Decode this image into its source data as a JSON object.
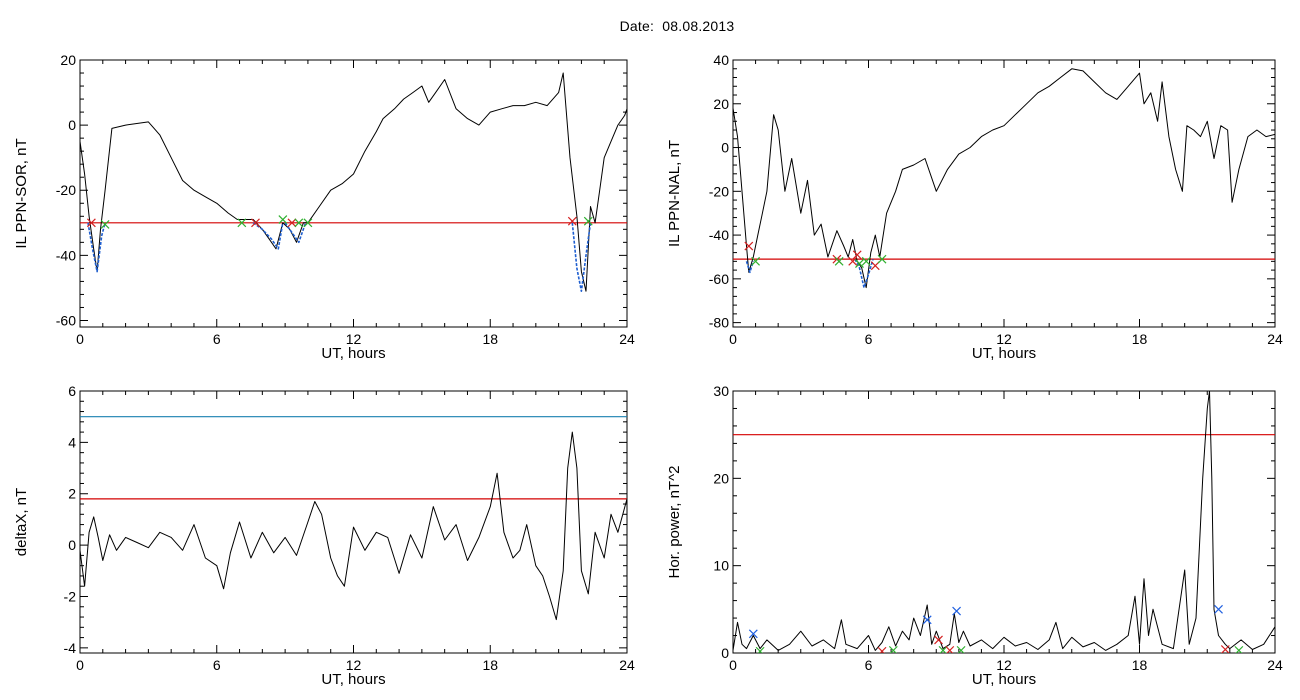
{
  "title_label": "Date:",
  "title_value": "08.08.2013",
  "colors": {
    "curve": "#000000",
    "threshold_red": "#d40000",
    "threshold_blue": "#1a80b0",
    "segment_blue": "#1f5fd0",
    "marker_red": "#d42020",
    "marker_green": "#2fb02f",
    "marker_blue": "#2060e0"
  },
  "chart_data": [
    {
      "id": "tl",
      "type": "line",
      "xlabel": "UT, hours",
      "ylabel": "IL PPN-SOR, nT",
      "xlim": [
        0,
        24
      ],
      "ylim": [
        -62,
        20
      ],
      "xticks": [
        0,
        6,
        12,
        18,
        24
      ],
      "yticks": [
        -60,
        -40,
        -20,
        0,
        20
      ],
      "threshold": {
        "y": -30,
        "color": "red"
      },
      "series": [
        {
          "x": [
            0,
            0.2,
            0.4,
            0.6,
            0.75,
            0.9,
            1.1,
            1.4,
            2,
            3,
            3.5,
            4,
            4.5,
            5,
            5.5,
            6,
            6.5,
            6.9,
            7.2,
            7.6,
            8,
            8.3,
            8.6,
            8.9,
            9.2,
            9.5,
            9.8,
            10,
            10.5,
            11,
            11.5,
            12,
            12.5,
            13,
            13.3,
            13.8,
            14.2,
            14.6,
            15,
            15.3,
            15.6,
            16,
            16.5,
            17,
            17.5,
            18,
            18.5,
            19,
            19.5,
            20,
            20.5,
            21,
            21.2,
            21.5,
            21.8,
            22,
            22.2,
            22.4,
            22.6,
            22.8,
            23,
            23.3,
            23.6,
            23.9,
            24
          ],
          "y": [
            -5,
            -15,
            -28,
            -38,
            -45,
            -32,
            -20,
            -1,
            0,
            1,
            -3,
            -10,
            -17,
            -20,
            -22,
            -24,
            -27,
            -29,
            -29,
            -29,
            -32,
            -35,
            -38,
            -30,
            -32,
            -36,
            -30,
            -30,
            -25,
            -20,
            -18,
            -15,
            -8,
            -2,
            2,
            5,
            8,
            10,
            12,
            7,
            10,
            14,
            5,
            2,
            0,
            4,
            5,
            6,
            6,
            7,
            6,
            10,
            16,
            -10,
            -28,
            -45,
            -51,
            -25,
            -30,
            -20,
            -10,
            -5,
            0,
            3,
            5
          ]
        }
      ],
      "segments": [
        {
          "x": [
            0.35,
            0.55,
            0.75,
            0.95,
            1.1
          ],
          "y": [
            -30,
            -38,
            -45,
            -34,
            -30
          ]
        },
        {
          "x": [
            7.6,
            8.0,
            8.4,
            8.7,
            8.9
          ],
          "y": [
            -30,
            -32,
            -35,
            -38,
            -30
          ]
        },
        {
          "x": [
            9.0,
            9.3,
            9.6,
            9.9
          ],
          "y": [
            -30,
            -33,
            -36,
            -30
          ]
        },
        {
          "x": [
            21.6,
            21.8,
            22.0,
            22.2,
            22.4
          ],
          "y": [
            -30,
            -44,
            -51,
            -40,
            -30
          ]
        }
      ],
      "markers": [
        {
          "x": 0.5,
          "y": -30,
          "color": "red"
        },
        {
          "x": 1.1,
          "y": -30.5,
          "color": "green"
        },
        {
          "x": 7.1,
          "y": -30,
          "color": "green"
        },
        {
          "x": 7.7,
          "y": -30,
          "color": "red"
        },
        {
          "x": 8.9,
          "y": -29,
          "color": "green"
        },
        {
          "x": 9.3,
          "y": -30,
          "color": "red"
        },
        {
          "x": 9.6,
          "y": -30,
          "color": "green"
        },
        {
          "x": 10.0,
          "y": -30,
          "color": "green"
        },
        {
          "x": 21.6,
          "y": -29.5,
          "color": "red"
        },
        {
          "x": 22.3,
          "y": -29.5,
          "color": "green"
        }
      ]
    },
    {
      "id": "tr",
      "type": "line",
      "xlabel": "UT, hours",
      "ylabel": "IL PPN-NAL, nT",
      "xlim": [
        0,
        24
      ],
      "ylim": [
        -82,
        40
      ],
      "xticks": [
        0,
        6,
        12,
        18,
        24
      ],
      "yticks": [
        -80,
        -60,
        -40,
        -20,
        0,
        20,
        40
      ],
      "threshold": {
        "y": -51,
        "color": "red"
      },
      "series": [
        {
          "x": [
            0,
            0.2,
            0.4,
            0.6,
            0.7,
            0.9,
            1.1,
            1.3,
            1.5,
            1.8,
            2.0,
            2.3,
            2.6,
            3.0,
            3.3,
            3.6,
            3.9,
            4.2,
            4.6,
            4.9,
            5.1,
            5.3,
            5.5,
            5.7,
            5.9,
            6.1,
            6.3,
            6.5,
            6.8,
            7.2,
            7.5,
            8,
            8.5,
            9,
            9.5,
            10,
            10.5,
            11,
            11.5,
            12,
            12.5,
            13,
            13.5,
            14,
            14.5,
            15,
            15.5,
            16,
            16.5,
            17,
            17.5,
            18,
            18.2,
            18.5,
            18.8,
            19,
            19.3,
            19.6,
            19.9,
            20.1,
            20.4,
            20.7,
            21.0,
            21.3,
            21.6,
            21.9,
            22.1,
            22.4,
            22.8,
            23.2,
            23.6,
            24
          ],
          "y": [
            18,
            5,
            -20,
            -45,
            -57,
            -50,
            -40,
            -30,
            -20,
            15,
            8,
            -20,
            -5,
            -30,
            -15,
            -40,
            -35,
            -50,
            -38,
            -45,
            -50,
            -42,
            -52,
            -55,
            -64,
            -48,
            -40,
            -50,
            -30,
            -20,
            -10,
            -8,
            -5,
            -20,
            -10,
            -3,
            0,
            5,
            8,
            10,
            15,
            20,
            25,
            28,
            32,
            36,
            35,
            30,
            25,
            22,
            28,
            34,
            20,
            25,
            12,
            30,
            5,
            -10,
            -20,
            10,
            8,
            5,
            12,
            -5,
            10,
            8,
            -25,
            -10,
            5,
            8,
            5,
            6
          ]
        }
      ],
      "segments": [
        {
          "x": [
            0.6,
            0.75,
            0.9
          ],
          "y": [
            -52,
            -57,
            -52
          ]
        },
        {
          "x": [
            5.4,
            5.6,
            5.8,
            6.0,
            6.2
          ],
          "y": [
            -51,
            -55,
            -64,
            -58,
            -51
          ]
        }
      ],
      "markers": [
        {
          "x": 0.7,
          "y": -45,
          "color": "red"
        },
        {
          "x": 1.0,
          "y": -52,
          "color": "green"
        },
        {
          "x": 4.6,
          "y": -51,
          "color": "red"
        },
        {
          "x": 4.7,
          "y": -52,
          "color": "green"
        },
        {
          "x": 5.3,
          "y": -52,
          "color": "red"
        },
        {
          "x": 5.5,
          "y": -49,
          "color": "red"
        },
        {
          "x": 5.6,
          "y": -53,
          "color": "green"
        },
        {
          "x": 5.9,
          "y": -52,
          "color": "green"
        },
        {
          "x": 6.3,
          "y": -54,
          "color": "red"
        },
        {
          "x": 6.6,
          "y": -51,
          "color": "green"
        }
      ]
    },
    {
      "id": "bl",
      "type": "line",
      "xlabel": "UT, hours",
      "ylabel": "deltaX, nT",
      "xlim": [
        0,
        24
      ],
      "ylim": [
        -4.2,
        6
      ],
      "xticks": [
        0,
        6,
        12,
        18,
        24
      ],
      "yticks": [
        -4,
        -2,
        0,
        2,
        4,
        6
      ],
      "threshold": {
        "y": 1.8,
        "color": "red"
      },
      "threshold2": {
        "y": 5.0,
        "color": "blue"
      },
      "series": [
        {
          "x": [
            0,
            0.2,
            0.4,
            0.6,
            0.8,
            1.0,
            1.3,
            1.6,
            2,
            2.5,
            3,
            3.5,
            4,
            4.5,
            5,
            5.5,
            6,
            6.3,
            6.6,
            7,
            7.5,
            8,
            8.5,
            9,
            9.5,
            10,
            10.3,
            10.6,
            11,
            11.3,
            11.6,
            12,
            12.5,
            13,
            13.5,
            14,
            14.5,
            15,
            15.5,
            16,
            16.5,
            17,
            17.5,
            18,
            18.3,
            18.6,
            19,
            19.3,
            19.6,
            20,
            20.3,
            20.6,
            20.9,
            21.2,
            21.4,
            21.6,
            21.8,
            22,
            22.3,
            22.6,
            23,
            23.3,
            23.6,
            24
          ],
          "y": [
            -0.2,
            -1.6,
            0.5,
            1.1,
            0.3,
            -0.6,
            0.4,
            -0.2,
            0.3,
            0.1,
            -0.1,
            0.5,
            0.3,
            -0.2,
            0.8,
            -0.5,
            -0.8,
            -1.7,
            -0.3,
            0.9,
            -0.5,
            0.5,
            -0.3,
            0.3,
            -0.4,
            0.9,
            1.7,
            1.2,
            -0.5,
            -1.2,
            -1.6,
            0.7,
            -0.2,
            0.5,
            0.3,
            -1.1,
            0.4,
            -0.5,
            1.5,
            0.2,
            0.8,
            -0.6,
            0.3,
            1.5,
            2.8,
            0.5,
            -0.5,
            -0.2,
            0.8,
            -0.8,
            -1.2,
            -2.0,
            -2.9,
            -1.0,
            3.0,
            4.4,
            3.0,
            -1.0,
            -1.9,
            0.5,
            -0.5,
            1.2,
            0.5,
            1.8
          ]
        }
      ]
    },
    {
      "id": "br",
      "type": "line",
      "xlabel": "UT, hours",
      "ylabel": "Hor. power, nT^2",
      "xlim": [
        0,
        24
      ],
      "ylim": [
        0,
        30
      ],
      "xticks": [
        0,
        6,
        12,
        18,
        24
      ],
      "yticks": [
        0,
        10,
        20,
        30
      ],
      "threshold": {
        "y": 25,
        "color": "red"
      },
      "series": [
        {
          "x": [
            0,
            0.2,
            0.4,
            0.6,
            0.9,
            1.2,
            1.5,
            2,
            2.5,
            3,
            3.5,
            4,
            4.5,
            4.8,
            5,
            5.5,
            6,
            6.3,
            6.6,
            6.9,
            7.2,
            7.5,
            7.8,
            8,
            8.3,
            8.6,
            8.8,
            9,
            9.3,
            9.6,
            9.8,
            10,
            10.2,
            10.5,
            11,
            11.5,
            12,
            12.5,
            13,
            13.5,
            14,
            14.3,
            14.6,
            15,
            15.5,
            16,
            16.5,
            17,
            17.5,
            17.8,
            18,
            18.2,
            18.4,
            18.6,
            19,
            19.5,
            20,
            20.2,
            20.5,
            20.8,
            21,
            21.1,
            21.2,
            21.3,
            21.5,
            21.8,
            22,
            22.5,
            23,
            23.5,
            24
          ],
          "y": [
            0.3,
            3.5,
            1.0,
            0.5,
            2.0,
            0.5,
            1.5,
            0.3,
            1.0,
            2.5,
            0.8,
            1.5,
            0.5,
            3.8,
            1.0,
            0.5,
            2.0,
            0.3,
            1.2,
            3.0,
            0.8,
            2.5,
            1.5,
            4.0,
            2.0,
            5.5,
            1.0,
            2.5,
            0.5,
            1.0,
            4.5,
            1.2,
            2.5,
            0.8,
            1.5,
            0.5,
            1.8,
            0.8,
            1.2,
            0.4,
            1.5,
            3.5,
            0.5,
            1.8,
            0.7,
            1.2,
            0.3,
            1.0,
            2.0,
            6.5,
            1.0,
            8.5,
            2.0,
            5.0,
            1.0,
            0.5,
            9.5,
            1.0,
            4.0,
            20.0,
            28.0,
            30.0,
            20.0,
            5.0,
            2.0,
            1.0,
            0.5,
            1.5,
            0.4,
            1.0,
            3.0
          ]
        }
      ],
      "markers": [
        {
          "x": 0.9,
          "y": 2.2,
          "color": "blue"
        },
        {
          "x": 1.2,
          "y": 0.2,
          "color": "green"
        },
        {
          "x": 6.6,
          "y": 0.2,
          "color": "red"
        },
        {
          "x": 7.1,
          "y": 0.3,
          "color": "green"
        },
        {
          "x": 8.6,
          "y": 3.8,
          "color": "blue"
        },
        {
          "x": 9.1,
          "y": 1.5,
          "color": "red"
        },
        {
          "x": 9.3,
          "y": 0.3,
          "color": "green"
        },
        {
          "x": 9.6,
          "y": 0.3,
          "color": "red"
        },
        {
          "x": 9.9,
          "y": 4.8,
          "color": "blue"
        },
        {
          "x": 10.1,
          "y": 0.3,
          "color": "green"
        },
        {
          "x": 21.5,
          "y": 5.0,
          "color": "blue"
        },
        {
          "x": 21.8,
          "y": 0.4,
          "color": "red"
        },
        {
          "x": 22.4,
          "y": 0.3,
          "color": "green"
        }
      ]
    }
  ]
}
